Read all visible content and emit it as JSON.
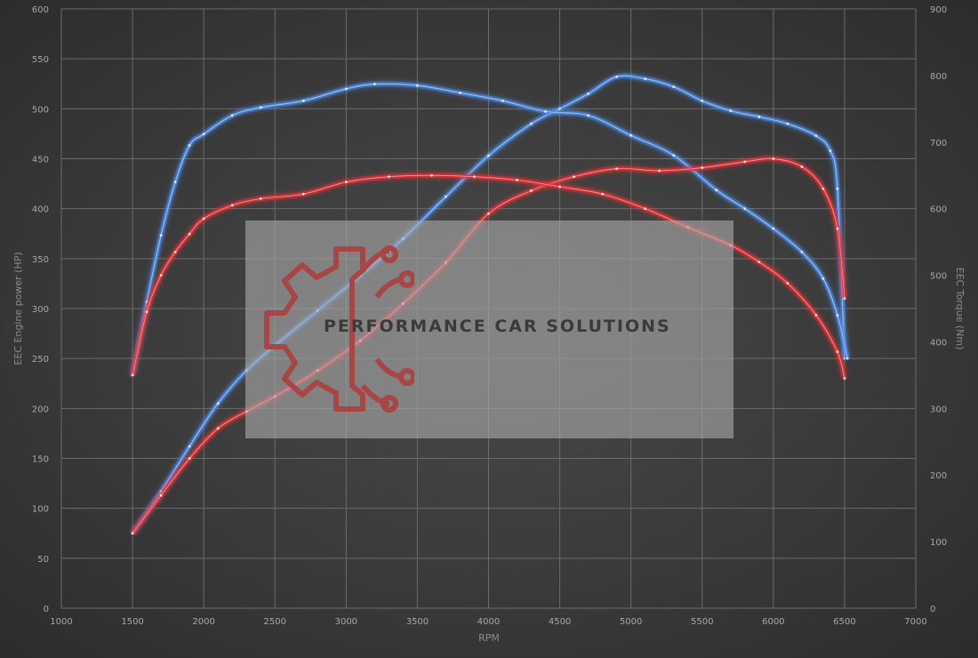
{
  "chart_data": {
    "type": "line",
    "xlabel": "RPM",
    "ylabel": "EEC Engine power (HP)",
    "y2label": "EEC Torque (Nm)",
    "xlim": [
      1000,
      7000
    ],
    "ylim": [
      0,
      600
    ],
    "y2lim": [
      0,
      900
    ],
    "x_ticks": [
      1000,
      1500,
      2000,
      2500,
      3000,
      3500,
      4000,
      4500,
      5000,
      5500,
      6000,
      6500,
      7000
    ],
    "y_ticks": [
      0,
      50,
      100,
      150,
      200,
      250,
      300,
      350,
      400,
      450,
      500,
      550,
      600
    ],
    "y2_ticks": [
      0,
      100,
      200,
      300,
      400,
      500,
      600,
      700,
      800,
      900
    ],
    "grid": true,
    "series": [
      {
        "axis": "left",
        "color": "#4f8fe8",
        "x": [
          1500,
          1700,
          1900,
          2100,
          2300,
          2500,
          2800,
          3100,
          3400,
          3700,
          4000,
          4300,
          4500,
          4700,
          4900,
          5100,
          5300,
          5500,
          5700,
          5900,
          6100,
          6300,
          6400,
          6450,
          6500
        ],
        "values": [
          75,
          117,
          162,
          205,
          238,
          263,
          298,
          333,
          370,
          412,
          453,
          485,
          500,
          515,
          532,
          530,
          522,
          508,
          498,
          492,
          485,
          473,
          458,
          420,
          250
        ]
      },
      {
        "axis": "right",
        "color": "#4f8fe8",
        "x": [
          1500,
          1600,
          1700,
          1800,
          1900,
          2000,
          2200,
          2400,
          2700,
          3000,
          3200,
          3500,
          3800,
          4100,
          4400,
          4700,
          5000,
          5300,
          5600,
          5800,
          6000,
          6200,
          6350,
          6450,
          6520
        ],
        "values": [
          350,
          460,
          560,
          640,
          695,
          712,
          740,
          752,
          762,
          780,
          787,
          785,
          774,
          762,
          746,
          740,
          710,
          680,
          628,
          600,
          570,
          535,
          495,
          440,
          375
        ]
      },
      {
        "axis": "left",
        "color": "#e8333a",
        "x": [
          1500,
          1700,
          1900,
          2100,
          2300,
          2500,
          2800,
          3100,
          3400,
          3700,
          4000,
          4300,
          4600,
          4900,
          5200,
          5500,
          5800,
          6000,
          6200,
          6350,
          6450,
          6500
        ],
        "values": [
          75,
          113,
          150,
          180,
          197,
          212,
          238,
          268,
          305,
          346,
          395,
          418,
          432,
          440,
          438,
          441,
          447,
          450,
          442,
          420,
          380,
          310
        ]
      },
      {
        "axis": "right",
        "color": "#e8333a",
        "x": [
          1500,
          1600,
          1700,
          1800,
          1900,
          2000,
          2200,
          2400,
          2700,
          3000,
          3300,
          3600,
          3900,
          4200,
          4500,
          4800,
          5100,
          5400,
          5700,
          5900,
          6100,
          6300,
          6450,
          6500
        ],
        "values": [
          350,
          445,
          500,
          535,
          562,
          585,
          605,
          615,
          622,
          640,
          648,
          650,
          648,
          643,
          633,
          622,
          600,
          572,
          545,
          520,
          488,
          440,
          385,
          345
        ]
      }
    ],
    "watermark": "PERFORMANCE CAR SOLUTIONS"
  }
}
